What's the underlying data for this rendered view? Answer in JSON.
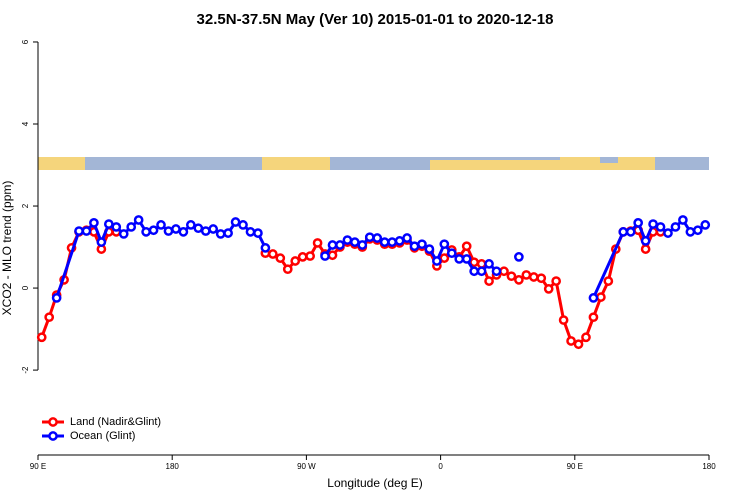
{
  "chart_data": {
    "type": "line",
    "title": "32.5N-37.5N May (Ver 10)   2015-01-01 to 2020-12-18",
    "x_label": "Longitude (deg E)",
    "y_label": "XCO2 - MLO trend (ppm)",
    "xlim": [
      90,
      540
    ],
    "xticks": [
      {
        "value": 90,
        "label": "90 E"
      },
      {
        "value": 180,
        "label": "180"
      },
      {
        "value": 270,
        "label": "90 W"
      },
      {
        "value": 360,
        "label": "0"
      },
      {
        "value": 450,
        "label": "90 E"
      },
      {
        "value": 540,
        "label": "180"
      }
    ],
    "ylim": [
      -4.07,
      6.17
    ],
    "yticks": [
      -2,
      0,
      2,
      4,
      6
    ],
    "legend": "bottom-left",
    "series": [
      {
        "name": "Land (Nadir&Glint)",
        "color": "#ff0000",
        "x": [
          92.5,
          97.5,
          102.5,
          107.5,
          112.5,
          117.5,
          122.5,
          127.5,
          132.5,
          137.5,
          142.5,
          192.5,
          242.5,
          247.5,
          252.5,
          257.5,
          262.5,
          267.5,
          272.5,
          277.5,
          282.5,
          287.5,
          292.5,
          297.5,
          302.5,
          307.5,
          312.5,
          317.5,
          322.5,
          327.5,
          332.5,
          337.5,
          342.5,
          347.5,
          352.5,
          357.5,
          362.5,
          367.5,
          372.5,
          377.5,
          382.5,
          387.5,
          392.5,
          397.5,
          402.5,
          407.5,
          412.5,
          417.5,
          422.5,
          427.5,
          432.5,
          437.5,
          442.5,
          447.5,
          452.5,
          457.5,
          462.5,
          467.5,
          472.5,
          477.5,
          482.5,
          487.5,
          492.5,
          497.5,
          502.5,
          507.5
        ],
        "values": [
          -1.2,
          -0.71,
          -0.17,
          0.2,
          0.98,
          1.37,
          1.41,
          1.37,
          0.95,
          1.37,
          1.37,
          null,
          0.85,
          0.83,
          0.73,
          0.46,
          0.66,
          0.76,
          0.78,
          1.1,
          0.83,
          0.8,
          1.0,
          1.12,
          1.07,
          1.0,
          1.2,
          1.17,
          1.07,
          1.07,
          1.1,
          1.17,
          0.98,
          1.02,
          0.9,
          0.54,
          0.73,
          0.93,
          0.76,
          1.02,
          0.63,
          0.59,
          0.17,
          0.32,
          0.41,
          0.29,
          0.2,
          0.32,
          0.27,
          0.24,
          -0.02,
          0.17,
          -0.78,
          -1.29,
          -1.37,
          -1.2,
          -0.71,
          -0.22,
          0.17,
          0.95,
          1.37,
          1.39,
          1.41,
          0.95,
          1.37,
          1.37
        ]
      },
      {
        "name": "Ocean (Glint)",
        "color": "#0000ff",
        "x": [
          102.5,
          117.5,
          122.5,
          127.5,
          132.5,
          137.5,
          142.5,
          147.5,
          152.5,
          157.5,
          162.5,
          167.5,
          172.5,
          177.5,
          182.5,
          187.5,
          192.5,
          197.5,
          202.5,
          207.5,
          212.5,
          217.5,
          222.5,
          227.5,
          232.5,
          237.5,
          242.5,
          262.5,
          282.5,
          287.5,
          292.5,
          297.5,
          302.5,
          307.5,
          312.5,
          317.5,
          322.5,
          327.5,
          332.5,
          337.5,
          342.5,
          347.5,
          352.5,
          357.5,
          362.5,
          367.5,
          372.5,
          377.5,
          382.5,
          387.5,
          392.5,
          397.5,
          405,
          412.5,
          437.5,
          462.5,
          482.5,
          487.5,
          492.5,
          497.5,
          502.5,
          507.5,
          512.5,
          517.5,
          522.5,
          527.5,
          532.5,
          537.5
        ],
        "values": [
          -0.24,
          1.39,
          1.39,
          1.59,
          1.12,
          1.56,
          1.49,
          1.32,
          1.49,
          1.66,
          1.37,
          1.41,
          1.54,
          1.39,
          1.44,
          1.37,
          1.54,
          1.46,
          1.39,
          1.44,
          1.32,
          1.34,
          1.61,
          1.54,
          1.37,
          1.34,
          0.98,
          null,
          0.78,
          1.05,
          1.05,
          1.17,
          1.12,
          1.05,
          1.24,
          1.22,
          1.12,
          1.12,
          1.15,
          1.22,
          1.02,
          1.07,
          0.95,
          0.66,
          1.07,
          0.85,
          0.71,
          0.71,
          0.41,
          0.41,
          0.59,
          0.41,
          null,
          0.76,
          null,
          -0.24,
          1.37,
          1.37,
          1.59,
          1.15,
          1.56,
          1.49,
          1.34,
          1.49,
          1.66,
          1.37,
          1.41,
          1.54
        ]
      }
    ]
  }
}
